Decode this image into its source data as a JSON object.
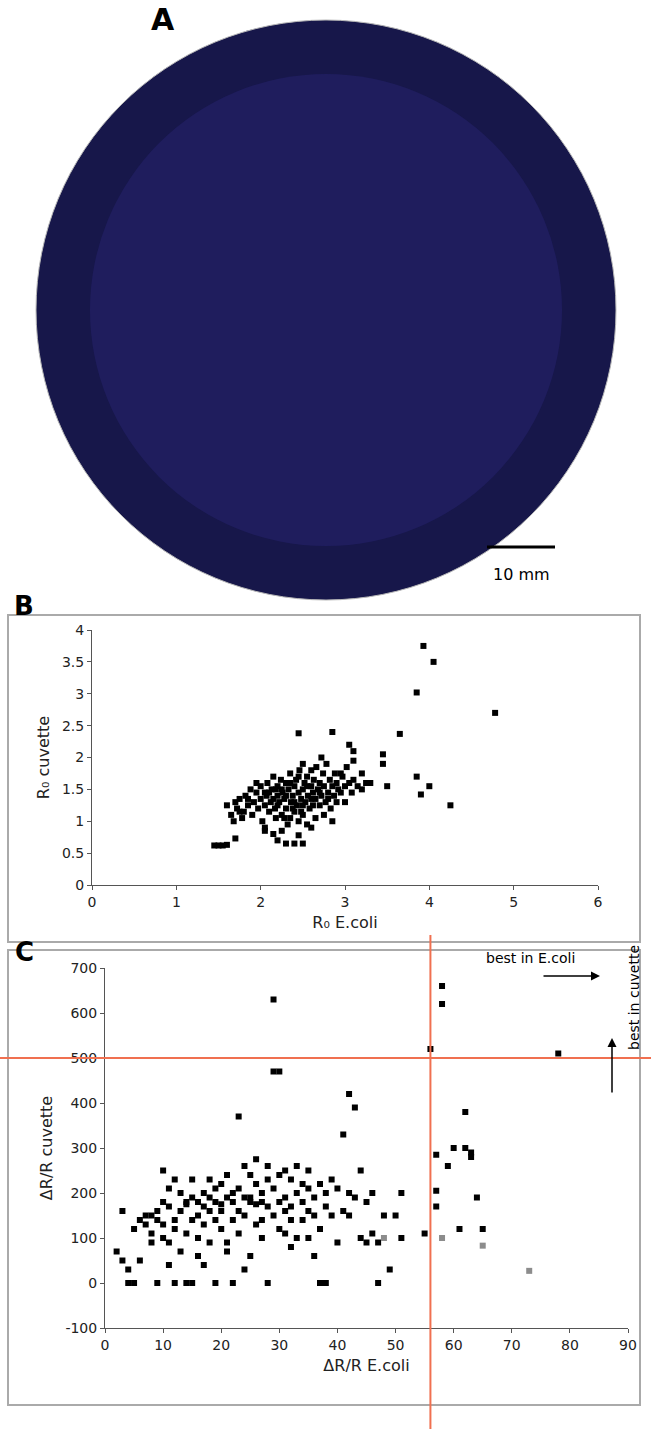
{
  "image_panel": {
    "label": "A",
    "scale_bar": "10 mm"
  },
  "chart_data": [
    {
      "label": "B",
      "type": "scatter",
      "marker": "square",
      "grid": false,
      "x_label": "R₀ E.coli",
      "y_label": "R₀ cuvette",
      "xlim": [
        0,
        6
      ],
      "xticks": [
        0,
        1,
        2,
        3,
        4,
        5,
        6
      ],
      "ylim": [
        0,
        4
      ],
      "yticks": [
        0,
        0.5,
        1,
        1.5,
        2,
        2.5,
        3,
        3.5,
        4
      ],
      "series": [
        {
          "color": "#000000",
          "x": [
            1.6,
            1.65,
            1.7,
            1.72,
            1.75,
            1.78,
            1.8,
            1.82,
            1.85,
            1.88,
            1.9,
            1.92,
            1.95,
            1.97,
            2.0,
            2.0,
            2.02,
            2.05,
            2.07,
            2.08,
            2.1,
            2.12,
            2.13,
            2.15,
            2.17,
            2.18,
            2.2,
            2.2,
            2.22,
            2.24,
            2.25,
            2.26,
            2.28,
            2.3,
            2.3,
            2.32,
            2.33,
            2.35,
            2.36,
            2.38,
            2.4,
            2.4,
            2.42,
            2.43,
            2.45,
            2.46,
            2.48,
            2.5,
            2.5,
            2.52,
            2.53,
            2.55,
            2.56,
            2.58,
            2.6,
            2.6,
            2.62,
            2.63,
            2.65,
            2.66,
            2.68,
            2.7,
            2.7,
            2.72,
            2.74,
            2.75,
            2.77,
            2.78,
            2.8,
            2.82,
            2.83,
            2.85,
            2.87,
            2.88,
            2.9,
            2.92,
            2.95,
            2.97,
            3.0,
            3.02,
            3.05,
            3.08,
            3.1,
            3.15,
            3.2,
            3.25,
            1.95,
            2.05,
            2.15,
            2.25,
            2.35,
            2.45,
            2.55,
            2.65,
            2.75,
            2.85,
            2.1,
            2.2,
            2.3,
            2.4,
            2.5,
            2.6,
            2.7,
            2.8,
            2.9,
            2.35,
            2.45,
            2.55,
            2.25,
            2.15,
            2.05,
            1.85,
            1.75,
            1.68,
            2.62,
            2.48,
            2.38,
            2.28,
            2.18,
            2.95,
            3.0,
            2.72,
            2.6,
            2.5,
            1.45,
            1.5,
            1.55,
            1.6,
            1.7,
            2.45,
            2.85,
            3.05,
            3.1,
            3.45,
            3.65,
            3.85,
            3.93,
            4.05,
            4.78,
            3.85,
            3.9,
            4.0,
            4.25,
            3.45,
            3.5,
            3.3,
            3.2,
            3.1,
            2.3,
            2.4,
            2.5,
            2.45,
            2.2,
            2.05
          ],
          "values": [
            1.25,
            1.1,
            1.3,
            1.2,
            1.35,
            1.05,
            1.15,
            1.4,
            1.25,
            1.5,
            1.1,
            1.3,
            1.45,
            1.2,
            1.35,
            1.55,
            1.0,
            1.25,
            1.4,
            1.6,
            1.15,
            1.3,
            1.5,
            1.7,
            1.2,
            1.05,
            1.4,
            1.55,
            1.3,
            1.65,
            1.1,
            1.45,
            1.35,
            1.6,
            1.2,
            0.95,
            1.5,
            1.75,
            1.3,
            1.4,
            1.15,
            1.55,
            1.65,
            1.25,
            1.45,
            1.8,
            1.35,
            1.5,
            1.1,
            1.6,
            1.3,
            1.7,
            1.4,
            1.2,
            1.55,
            0.9,
            1.45,
            1.65,
            1.35,
            1.85,
            1.5,
            1.25,
            1.6,
            1.4,
            1.75,
            1.55,
            1.3,
            1.9,
            1.45,
            1.65,
            1.2,
            1.55,
            1.4,
            1.75,
            1.6,
            1.5,
            1.45,
            1.7,
            1.55,
            1.85,
            1.6,
            1.45,
            1.65,
            1.55,
            1.5,
            1.6,
            1.6,
            0.9,
            0.8,
            0.85,
            1.05,
            1.0,
            0.95,
            1.05,
            1.1,
            1.0,
            1.45,
            1.25,
            1.4,
            1.3,
            1.25,
            1.35,
            1.45,
            1.35,
            1.3,
            1.6,
            1.7,
            1.55,
            1.5,
            1.35,
            1.45,
            1.35,
            1.15,
            1.0,
            1.25,
            1.15,
            1.2,
            1.05,
            1.5,
            1.75,
            1.3,
            2.0,
            1.8,
            1.9,
            0.62,
            0.62,
            0.62,
            0.63,
            0.73,
            2.38,
            2.4,
            2.2,
            2.1,
            2.05,
            2.37,
            3.02,
            3.75,
            3.5,
            2.7,
            1.7,
            1.42,
            1.55,
            1.25,
            1.9,
            1.55,
            1.6,
            1.75,
            1.95,
            0.65,
            0.65,
            0.65,
            0.78,
            0.7,
            0.85
          ]
        }
      ]
    },
    {
      "label": "C",
      "type": "scatter",
      "marker": "square",
      "grid": false,
      "x_label": "ΔR/R E.coli",
      "y_label": "ΔR/R cuvette",
      "xlim": [
        0,
        90
      ],
      "xticks": [
        0,
        10,
        20,
        30,
        40,
        50,
        60,
        70,
        80,
        90
      ],
      "ylim": [
        -100,
        700
      ],
      "yticks": [
        -100,
        0,
        100,
        200,
        300,
        400,
        500,
        600,
        700
      ],
      "vlines": [
        56
      ],
      "hlines": [
        500
      ],
      "line_color": "#f07050",
      "annotations": [
        {
          "text": "best in E.coli"
        },
        {
          "text": "best in cuvette"
        }
      ],
      "series": [
        {
          "color": "#000000",
          "x": [
            2,
            3,
            3,
            4,
            4,
            5,
            5,
            6,
            6,
            7,
            7,
            8,
            8,
            8,
            9,
            9,
            9,
            10,
            10,
            10,
            10,
            11,
            11,
            11,
            11,
            12,
            12,
            12,
            12,
            13,
            13,
            13,
            14,
            14,
            14,
            14,
            15,
            15,
            15,
            15,
            16,
            16,
            16,
            16,
            17,
            17,
            17,
            17,
            18,
            18,
            18,
            18,
            19,
            19,
            19,
            19,
            20,
            20,
            20,
            20,
            21,
            21,
            21,
            21,
            22,
            22,
            22,
            22,
            23,
            23,
            23,
            23,
            24,
            24,
            24,
            24,
            25,
            25,
            25,
            25,
            26,
            26,
            26,
            26,
            27,
            27,
            27,
            27,
            28,
            28,
            28,
            28,
            29,
            29,
            29,
            29,
            30,
            30,
            30,
            30,
            31,
            31,
            31,
            31,
            32,
            32,
            32,
            32,
            33,
            33,
            33,
            34,
            34,
            34,
            35,
            35,
            35,
            35,
            36,
            36,
            36,
            37,
            37,
            37,
            38,
            38,
            38,
            39,
            39,
            40,
            40,
            41,
            41,
            42,
            42,
            42,
            43,
            43,
            44,
            44,
            45,
            45,
            46,
            46,
            47,
            47,
            48,
            49,
            50,
            51,
            51,
            55,
            56,
            57,
            57,
            57,
            58,
            58,
            59,
            60,
            61,
            62,
            62,
            63,
            63,
            64,
            65,
            78
          ],
          "values": [
            70,
            50,
            160,
            0,
            30,
            0,
            120,
            50,
            140,
            150,
            130,
            110,
            150,
            90,
            140,
            160,
            0,
            180,
            130,
            100,
            250,
            90,
            210,
            170,
            40,
            0,
            120,
            140,
            230,
            160,
            200,
            70,
            175,
            110,
            0,
            180,
            140,
            190,
            230,
            0,
            100,
            180,
            150,
            60,
            200,
            130,
            170,
            40,
            190,
            230,
            160,
            90,
            180,
            210,
            140,
            0,
            175,
            220,
            120,
            160,
            90,
            190,
            240,
            70,
            140,
            180,
            200,
            0,
            210,
            370,
            160,
            110,
            190,
            30,
            260,
            150,
            180,
            240,
            60,
            190,
            175,
            275,
            130,
            220,
            140,
            200,
            100,
            180,
            230,
            260,
            0,
            170,
            630,
            470,
            150,
            210,
            240,
            470,
            180,
            120,
            190,
            250,
            110,
            160,
            230,
            170,
            80,
            140,
            200,
            260,
            100,
            180,
            220,
            140,
            160,
            250,
            100,
            210,
            190,
            150,
            60,
            0,
            220,
            120,
            170,
            200,
            0,
            150,
            230,
            90,
            210,
            160,
            330,
            420,
            200,
            150,
            390,
            190,
            250,
            100,
            180,
            90,
            200,
            110,
            90,
            0,
            150,
            30,
            150,
            200,
            100,
            110,
            520,
            285,
            205,
            170,
            660,
            620,
            260,
            300,
            120,
            380,
            300,
            280,
            290,
            190,
            120,
            510
          ]
        },
        {
          "color": "#8c8c8c",
          "x": [
            48,
            58,
            65,
            73
          ],
          "values": [
            100,
            100,
            83,
            27
          ]
        }
      ]
    }
  ]
}
